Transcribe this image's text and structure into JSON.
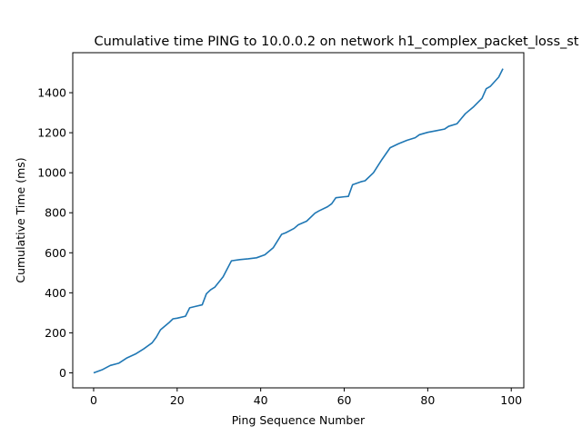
{
  "chart_data": {
    "type": "line",
    "title": "Cumulative time PING to 10.0.0.2 on network h1_complex_packet_loss_st",
    "xlabel": "Ping Sequence Number",
    "ylabel": "Cumulative Time (ms)",
    "xlim": [
      -5,
      103
    ],
    "ylim": [
      -75,
      1600
    ],
    "xticks": [
      0,
      20,
      40,
      60,
      80,
      100
    ],
    "yticks": [
      0,
      200,
      400,
      600,
      800,
      1000,
      1200,
      1400
    ],
    "grid": false,
    "color": "#1f77b4",
    "series": [
      {
        "x": [
          0,
          2,
          4,
          6,
          8,
          10,
          12,
          14,
          15,
          16,
          18,
          19,
          20,
          22,
          23,
          24,
          26,
          27,
          28,
          29,
          31,
          33,
          35,
          37,
          39,
          41,
          43,
          45,
          46,
          48,
          49,
          51,
          53,
          54,
          56,
          57,
          58,
          60,
          61,
          62,
          64,
          65,
          67,
          69,
          71,
          73,
          75,
          77,
          78,
          80,
          82,
          84,
          85,
          87,
          89,
          91,
          93,
          94,
          95,
          97,
          98
        ],
        "y": [
          0,
          15,
          37,
          48,
          75,
          94,
          120,
          150,
          178,
          215,
          250,
          270,
          273,
          283,
          325,
          330,
          340,
          395,
          415,
          428,
          480,
          560,
          566,
          570,
          575,
          590,
          625,
          692,
          700,
          722,
          740,
          758,
          798,
          810,
          830,
          845,
          875,
          880,
          882,
          940,
          955,
          960,
          1000,
          1065,
          1125,
          1145,
          1162,
          1175,
          1190,
          1202,
          1210,
          1218,
          1232,
          1245,
          1295,
          1330,
          1372,
          1420,
          1432,
          1478,
          1520
        ]
      }
    ]
  }
}
